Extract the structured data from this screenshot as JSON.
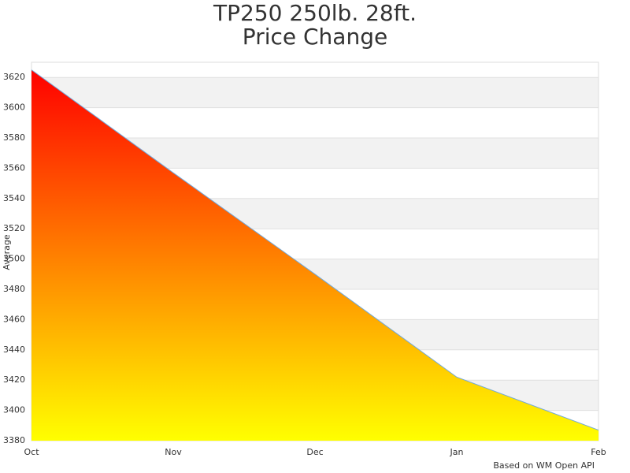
{
  "chart_data": {
    "type": "area",
    "title": [
      "TP250 250lb. 28ft.",
      "Price Change"
    ],
    "y_label": "Average",
    "credit": "Based on WM Open API",
    "categories": [
      "Oct",
      "Nov",
      "Dec",
      "Jan",
      "Feb"
    ],
    "series": [
      {
        "name": "Average",
        "color": "#6fa8dc",
        "values": [
          3625,
          3557,
          3490,
          3422,
          3387
        ]
      }
    ],
    "fill_gradient": [
      "#ff0000",
      "#ffff00"
    ],
    "ylim": [
      3380,
      3630
    ],
    "yticks": [
      3380,
      3400,
      3420,
      3440,
      3460,
      3480,
      3500,
      3520,
      3540,
      3560,
      3580,
      3600,
      3620
    ],
    "grid": true
  }
}
